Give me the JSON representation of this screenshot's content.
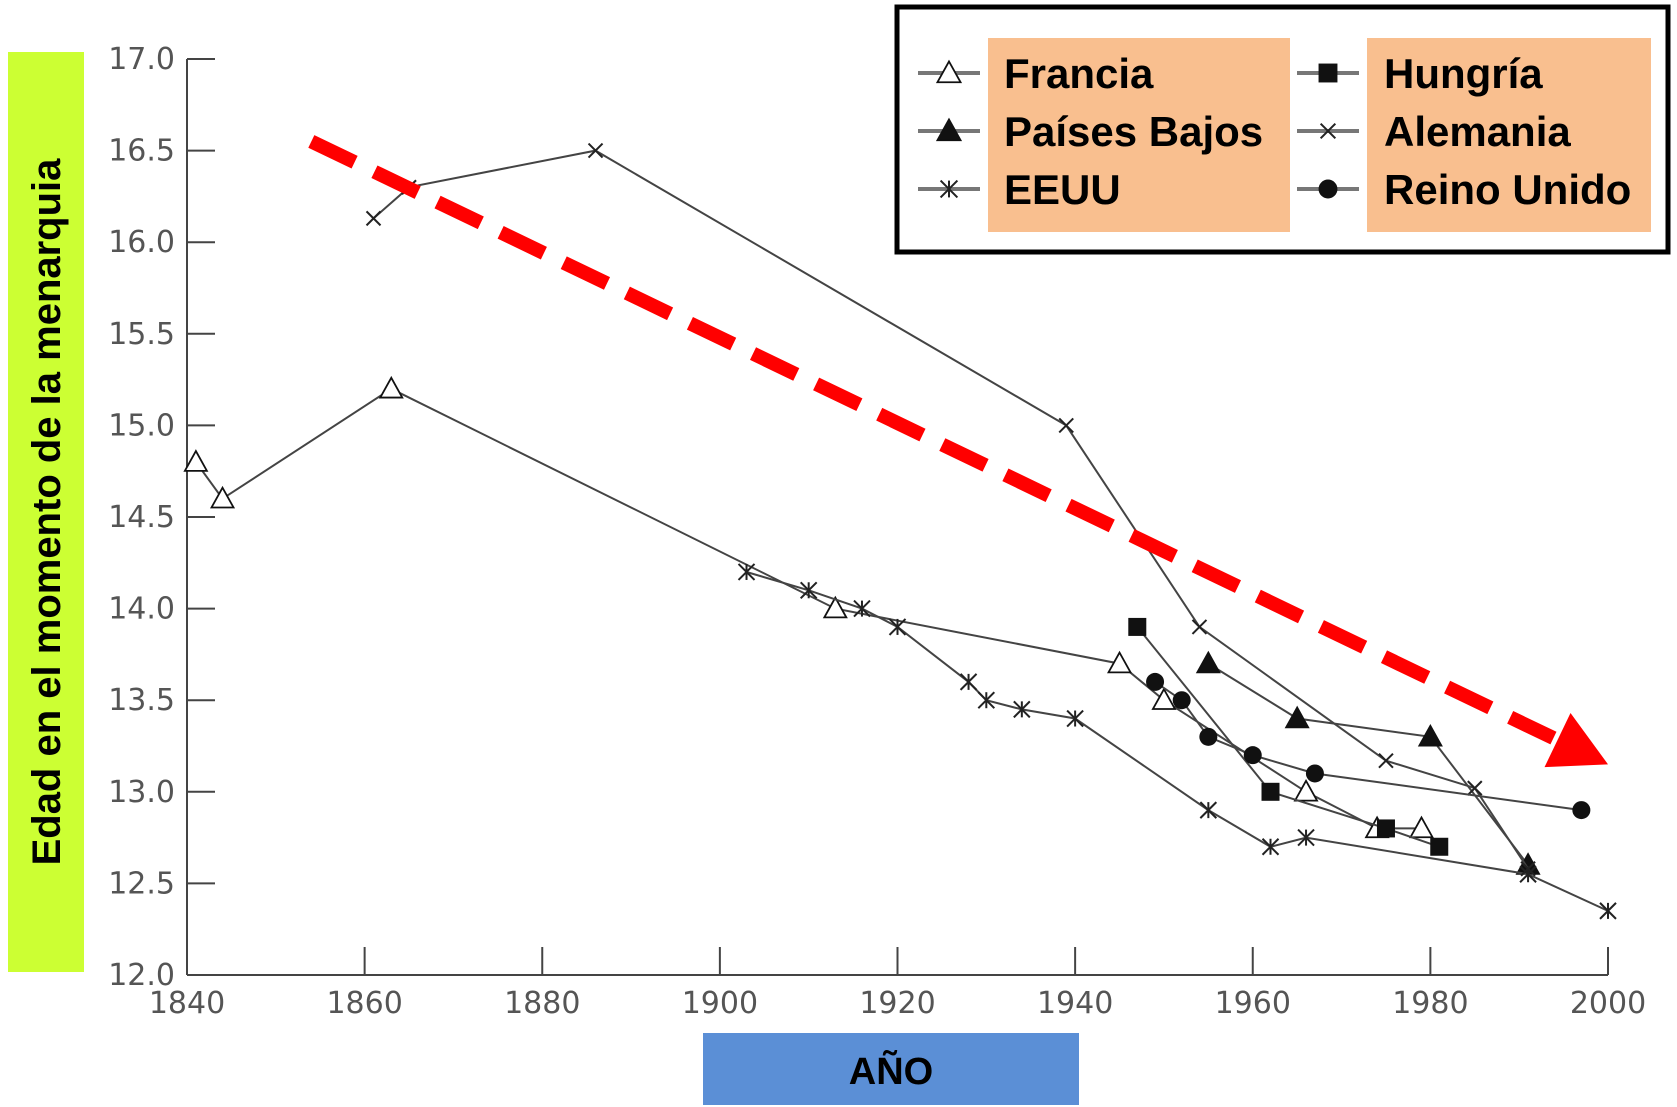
{
  "chart_data": {
    "type": "line",
    "title": "",
    "xlabel": "AÑO",
    "ylabel": "Edad en el momento de la menarquia",
    "xlim": [
      1840,
      2000
    ],
    "ylim": [
      12.0,
      17.0
    ],
    "x_ticks": [
      "1840",
      "1860",
      "1880",
      "1900",
      "1920",
      "1940",
      "1960",
      "1980",
      "2000"
    ],
    "y_ticks": [
      "17.0",
      "16.5",
      "16.0",
      "15.5",
      "15.0",
      "14.5",
      "14.0",
      "13.5",
      "13.0",
      "12.5",
      "12.0"
    ],
    "legend": {
      "position": "top-right"
    },
    "colors": {
      "line": "#444444",
      "ylabel_bg": "#ccff33",
      "xlabel_bg": "#5b8fd6",
      "legend_box_bg": "#f9bf8f",
      "arrow": "#ff0000"
    },
    "series": [
      {
        "name": "Francia",
        "marker": "triangle-open",
        "points": [
          [
            1841,
            14.8
          ],
          [
            1844,
            14.6
          ],
          [
            1863,
            15.2
          ],
          [
            1913,
            14.0
          ],
          [
            1945,
            13.7
          ],
          [
            1950,
            13.5
          ],
          [
            1966,
            13.0
          ],
          [
            1974,
            12.8
          ],
          [
            1979,
            12.8
          ]
        ]
      },
      {
        "name": "Países Bajos",
        "marker": "triangle-filled",
        "points": [
          [
            1955,
            13.7
          ],
          [
            1965,
            13.4
          ],
          [
            1980,
            13.3
          ],
          [
            1991,
            12.6
          ]
        ]
      },
      {
        "name": "EEUU",
        "marker": "asterisk",
        "points": [
          [
            1903,
            14.2
          ],
          [
            1910,
            14.1
          ],
          [
            1916,
            14.0
          ],
          [
            1920,
            13.9
          ],
          [
            1928,
            13.6
          ],
          [
            1930,
            13.5
          ],
          [
            1934,
            13.45
          ],
          [
            1940,
            13.4
          ],
          [
            1955,
            12.9
          ],
          [
            1962,
            12.7
          ],
          [
            1966,
            12.75
          ],
          [
            1991,
            12.55
          ],
          [
            2000,
            12.35
          ]
        ]
      },
      {
        "name": "Hungría",
        "marker": "square-filled",
        "points": [
          [
            1947,
            13.9
          ],
          [
            1962,
            13.0
          ],
          [
            1975,
            12.8
          ],
          [
            1981,
            12.7
          ]
        ]
      },
      {
        "name": "Alemania",
        "marker": "cross",
        "points": [
          [
            1861,
            16.13
          ],
          [
            1865,
            16.3
          ],
          [
            1886,
            16.5
          ],
          [
            1939,
            15.0
          ],
          [
            1954,
            13.9
          ],
          [
            1975,
            13.17
          ],
          [
            1985,
            13.02
          ],
          [
            1991,
            12.58
          ]
        ]
      },
      {
        "name": "Reino Unido",
        "marker": "circle-filled",
        "points": [
          [
            1949,
            13.6
          ],
          [
            1952,
            13.5
          ],
          [
            1955,
            13.3
          ],
          [
            1960,
            13.2
          ],
          [
            1967,
            13.1
          ],
          [
            1997,
            12.9
          ]
        ]
      }
    ],
    "trend_arrow": {
      "from": [
        1854,
        16.55
      ],
      "to": [
        2000,
        13.15
      ]
    }
  }
}
